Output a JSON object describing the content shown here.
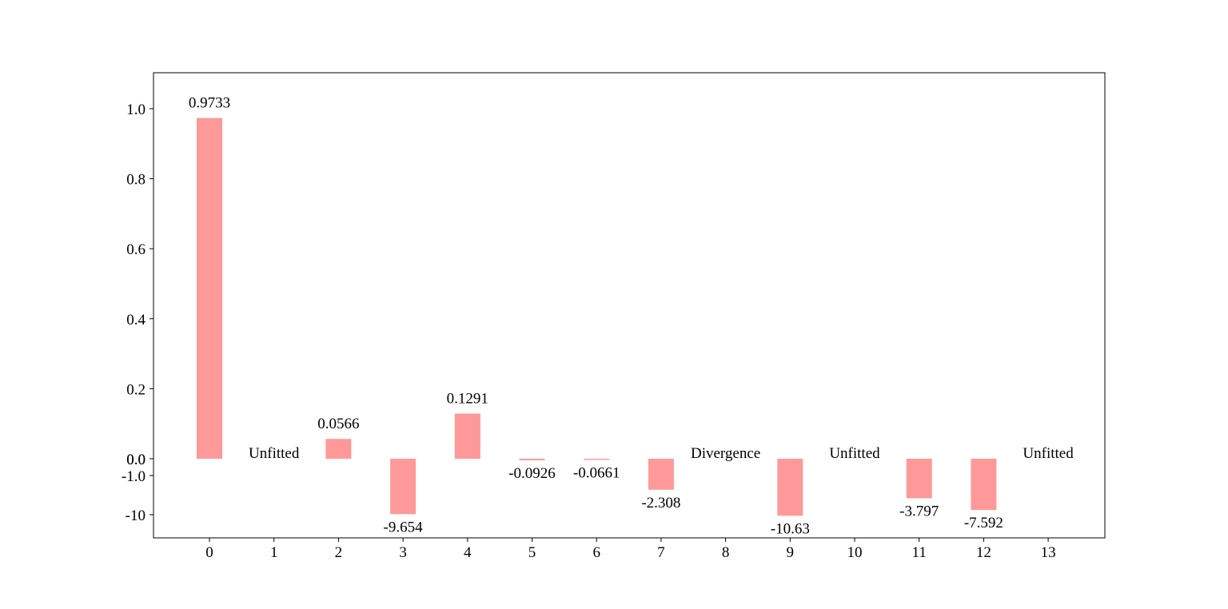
{
  "chart_data": {
    "type": "bar",
    "categories": [
      "0",
      "1",
      "2",
      "3",
      "4",
      "5",
      "6",
      "7",
      "8",
      "9",
      "10",
      "11",
      "12",
      "13"
    ],
    "values": [
      0.9733,
      null,
      0.0566,
      -9.654,
      0.1291,
      -0.0926,
      -0.0661,
      -2.308,
      null,
      -10.63,
      null,
      -3.797,
      -7.592,
      null
    ],
    "bar_labels": [
      "0.9733",
      "Unfitted",
      "0.0566",
      "-9.654",
      "0.1291",
      "-0.0926",
      "-0.0661",
      "-2.308",
      "Divergence",
      "-10.63",
      "Unfitted",
      "-3.797",
      "-7.592",
      "Unfitted"
    ],
    "y_ticks_upper": [
      "0.0",
      "0.2",
      "0.4",
      "0.6",
      "0.8",
      "1.0"
    ],
    "y_ticks_lower": [
      "0.0",
      "-1.0",
      "-10"
    ],
    "y_scale": "split: linear 0 to 1.1 above zero, symlog-like below zero",
    "ylim": [
      -15,
      1.1
    ],
    "bar_color": "#ff9999",
    "grid": false,
    "title": "",
    "xlabel": "",
    "ylabel": ""
  }
}
